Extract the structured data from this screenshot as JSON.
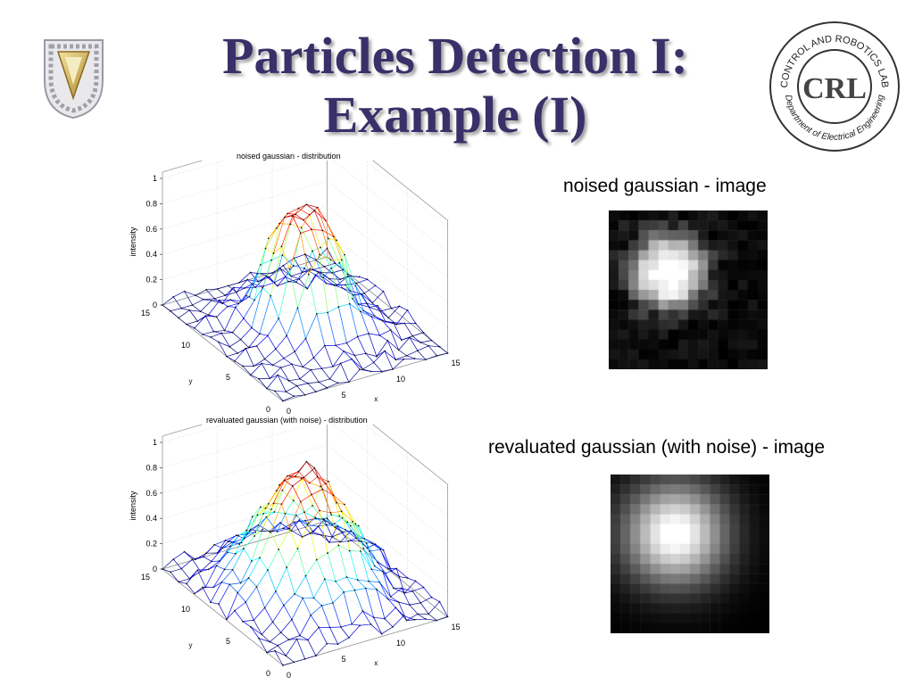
{
  "slide": {
    "title_line1": "Particles Detection I:",
    "title_line2": "Example (I)",
    "logo_left_icon": "technion-gear-logo-icon",
    "logo_right": {
      "icon": "crl-seal-logo-icon",
      "abbrev": "CRL",
      "ring_top": "CONTROL AND ROBOTICS LAB",
      "ring_bottom": "Department of Electrical Engineering"
    }
  },
  "images": [
    {
      "caption": "noised gaussian - image"
    },
    {
      "caption": "revaluated gaussian (with noise) - image"
    }
  ],
  "chart_data": [
    {
      "type": "surface",
      "title": "noised gaussian - distribution",
      "xlabel": "x",
      "ylabel": "y",
      "zlabel": "intensity",
      "x_ticks": [
        "0",
        "5",
        "10",
        "15"
      ],
      "y_ticks": [
        "0",
        "5",
        "10",
        "15"
      ],
      "z_ticks": [
        "0",
        "0.2",
        "0.4",
        "0.6",
        "0.8",
        "1"
      ],
      "xlim": [
        0,
        15
      ],
      "ylim": [
        0,
        15
      ],
      "zlim": [
        0,
        1
      ],
      "grid": true,
      "colormap": "jet"
    },
    {
      "type": "surface",
      "title": "revaluated gaussian (with noise) - distribution",
      "xlabel": "x",
      "ylabel": "y",
      "zlabel": "intensity",
      "x_ticks": [
        "0",
        "5",
        "10",
        "15"
      ],
      "y_ticks": [
        "0",
        "5",
        "10",
        "15"
      ],
      "z_ticks": [
        "0",
        "0.2",
        "0.4",
        "0.6",
        "0.8",
        "1"
      ],
      "xlim": [
        0,
        15
      ],
      "ylim": [
        0,
        15
      ],
      "zlim": [
        0,
        1
      ],
      "grid": true,
      "colormap": "jet"
    }
  ]
}
